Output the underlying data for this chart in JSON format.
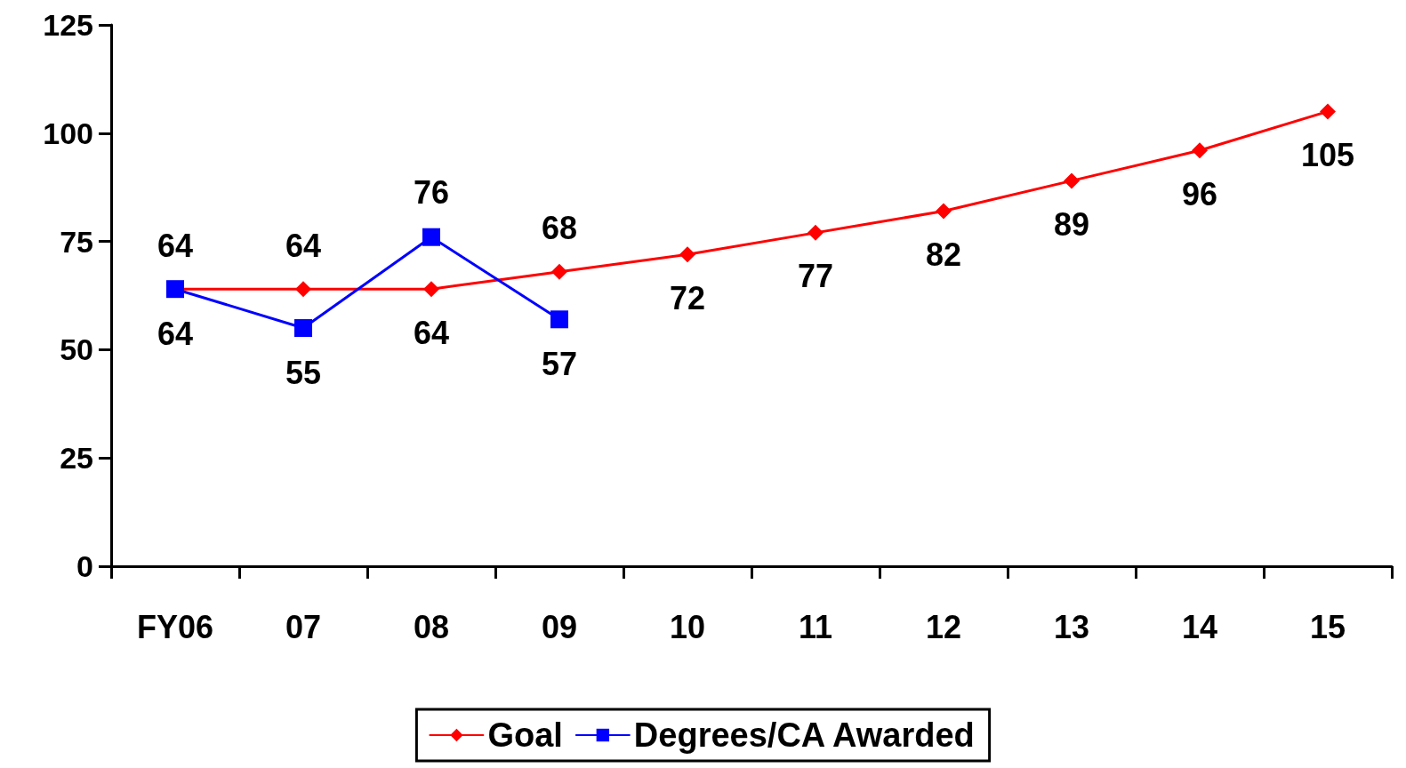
{
  "chart_data": {
    "type": "line",
    "categories": [
      "FY06",
      "07",
      "08",
      "09",
      "10",
      "11",
      "12",
      "13",
      "14",
      "15"
    ],
    "series": [
      {
        "name": "Goal",
        "color": "#ff0000",
        "marker": "diamond",
        "values": [
          64,
          64,
          64,
          68,
          72,
          77,
          82,
          89,
          96,
          105
        ]
      },
      {
        "name": "Degrees/CA Awarded",
        "color": "#0000ff",
        "marker": "square",
        "values": [
          64,
          55,
          76,
          57,
          null,
          null,
          null,
          null,
          null,
          null
        ]
      }
    ],
    "ylim": [
      0,
      125
    ],
    "yticks": [
      0,
      25,
      50,
      75,
      100,
      125
    ],
    "grid": false,
    "legend": "bottom",
    "data_labels": true
  }
}
